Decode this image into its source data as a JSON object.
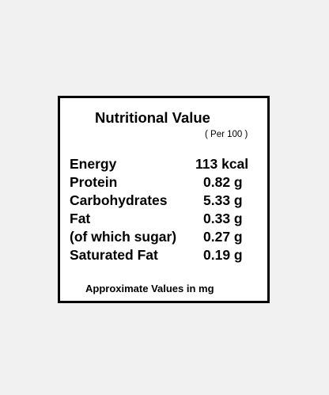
{
  "label": {
    "title": "Nutritional Value",
    "per_note": "( Per 100 )",
    "rows": [
      {
        "name": "Energy",
        "value": "113 kcal"
      },
      {
        "name": "Protein",
        "value": "0.82 g"
      },
      {
        "name": "Carbohydrates",
        "value": "5.33 g"
      },
      {
        "name": "Fat",
        "value": "0.33 g"
      },
      {
        "name": "(of which sugar)",
        "value": "0.27 g"
      },
      {
        "name": "Saturated Fat",
        "value": "0.19 g"
      }
    ],
    "footer": "Approximate Values in mg"
  },
  "colors": {
    "background": "#f1f1f1",
    "card": "#ffffff",
    "border": "#000000",
    "text": "#000000"
  }
}
